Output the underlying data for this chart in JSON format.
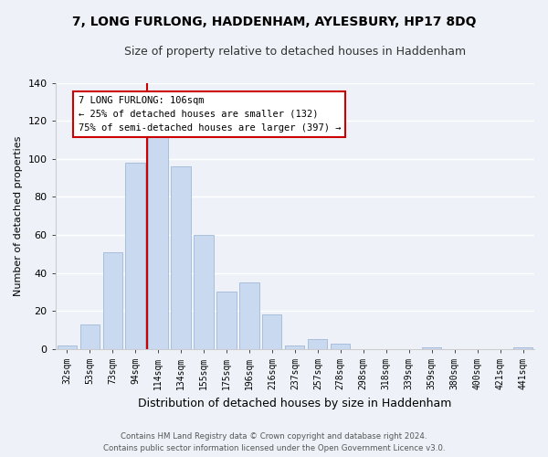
{
  "title": "7, LONG FURLONG, HADDENHAM, AYLESBURY, HP17 8DQ",
  "subtitle": "Size of property relative to detached houses in Haddenham",
  "xlabel": "Distribution of detached houses by size in Haddenham",
  "ylabel": "Number of detached properties",
  "bar_labels": [
    "32sqm",
    "53sqm",
    "73sqm",
    "94sqm",
    "114sqm",
    "134sqm",
    "155sqm",
    "175sqm",
    "196sqm",
    "216sqm",
    "237sqm",
    "257sqm",
    "278sqm",
    "298sqm",
    "318sqm",
    "339sqm",
    "359sqm",
    "380sqm",
    "400sqm",
    "421sqm",
    "441sqm"
  ],
  "bar_values": [
    2,
    13,
    51,
    98,
    117,
    96,
    60,
    30,
    35,
    18,
    2,
    5,
    3,
    0,
    0,
    0,
    1,
    0,
    0,
    0,
    1
  ],
  "bar_color": "#c9d9f0",
  "bar_edge_color": "#a0b8d8",
  "vline_x_index": 4,
  "vline_color": "#cc0000",
  "ylim": [
    0,
    140
  ],
  "yticks": [
    0,
    20,
    40,
    60,
    80,
    100,
    120,
    140
  ],
  "annotation_line1": "7 LONG FURLONG: 106sqm",
  "annotation_line2": "← 25% of detached houses are smaller (132)",
  "annotation_line3": "75% of semi-detached houses are larger (397) →",
  "annotation_box_color": "#ffffff",
  "annotation_box_edge": "#cc0000",
  "footer_line1": "Contains HM Land Registry data © Crown copyright and database right 2024.",
  "footer_line2": "Contains public sector information licensed under the Open Government Licence v3.0.",
  "background_color": "#eef2f8",
  "grid_color": "#ffffff",
  "title_fontsize": 10,
  "subtitle_fontsize": 9,
  "ylabel_fontsize": 8,
  "xlabel_fontsize": 9
}
